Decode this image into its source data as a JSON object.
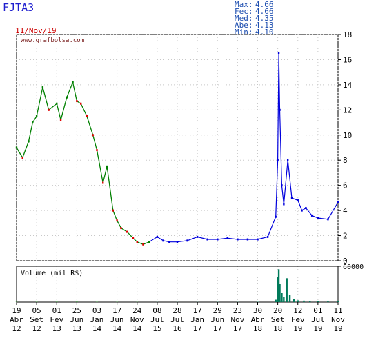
{
  "header": {
    "ticker": "FJTA3",
    "date": "11/Nov/19",
    "stats": [
      {
        "label": "Max:",
        "value": "4.66"
      },
      {
        "label": "Fec:",
        "value": "4.66"
      },
      {
        "label": "Med:",
        "value": "4.35"
      },
      {
        "label": "Abe:",
        "value": "4.13"
      },
      {
        "label": "Min:",
        "value": "4.10"
      }
    ]
  },
  "colors": {
    "up": "#008000",
    "down": "#e00000",
    "recent": "#0000dd",
    "axis": "#000000",
    "grid": "#c8c8c8",
    "title_red": "#cc0000",
    "stats_blue": "#1f4fb0"
  },
  "chart_data": [
    {
      "type": "line",
      "watermark": "www.grafbolsa.com",
      "ylim": [
        0,
        18
      ],
      "y_ticks": [
        0,
        2,
        4,
        6,
        8,
        10,
        12,
        14,
        16,
        18
      ],
      "x_ticks": [
        {
          "day": "19",
          "month": "Abr",
          "year": "12"
        },
        {
          "day": "05",
          "month": "Set",
          "year": "12"
        },
        {
          "day": "01",
          "month": "Fev",
          "year": "13"
        },
        {
          "day": "25",
          "month": "Jun",
          "year": "13"
        },
        {
          "day": "03",
          "month": "Jan",
          "year": "14"
        },
        {
          "day": "17",
          "month": "Jun",
          "year": "14"
        },
        {
          "day": "24",
          "month": "Nov",
          "year": "14"
        },
        {
          "day": "08",
          "month": "Jul",
          "year": "15"
        },
        {
          "day": "28",
          "month": "Jul",
          "year": "16"
        },
        {
          "day": "17",
          "month": "Jan",
          "year": "17"
        },
        {
          "day": "29",
          "month": "Jun",
          "year": "17"
        },
        {
          "day": "23",
          "month": "Nov",
          "year": "17"
        },
        {
          "day": "30",
          "month": "Abr",
          "year": "18"
        },
        {
          "day": "20",
          "month": "Set",
          "year": "18"
        },
        {
          "day": "12",
          "month": "Fev",
          "year": "19"
        },
        {
          "day": "01",
          "month": "Jul",
          "year": "19"
        },
        {
          "day": "11",
          "month": "Nov",
          "year": "19"
        }
      ],
      "price_series": {
        "x": [
          0,
          0.3,
          0.6,
          0.8,
          1,
          1.3,
          1.6,
          2,
          2.2,
          2.5,
          2.8,
          3,
          3.2,
          3.5,
          3.8,
          4,
          4.3,
          4.5,
          4.8,
          5,
          5.2,
          5.5,
          5.8,
          6,
          6.3,
          6.6,
          7,
          7.3,
          7.6,
          8,
          8.5,
          9,
          9.5,
          10,
          10.5,
          11,
          11.5,
          12,
          12.5,
          12.9,
          13,
          13.05,
          13.1,
          13.2,
          13.3,
          13.5,
          13.7,
          14,
          14.2,
          14.4,
          14.7,
          15,
          15.5,
          16
        ],
        "y": [
          9,
          8.2,
          9.5,
          11,
          11.5,
          13.8,
          12,
          12.5,
          11.2,
          13,
          14.2,
          12.7,
          12.5,
          11.5,
          10,
          8.8,
          6.2,
          7.5,
          4,
          3.2,
          2.6,
          2.3,
          1.8,
          1.5,
          1.3,
          1.5,
          1.9,
          1.6,
          1.5,
          1.5,
          1.6,
          1.9,
          1.7,
          1.7,
          1.8,
          1.7,
          1.7,
          1.7,
          1.9,
          3.5,
          8,
          16.5,
          12,
          6,
          4.5,
          8,
          5,
          4.8,
          4,
          4.2,
          3.6,
          3.4,
          3.3,
          4.66
        ],
        "recent_from_x": 6.6
      },
      "volume_panel": {
        "label": "Volume (mil R$)",
        "ylim": [
          0,
          60000
        ],
        "y_ticks": [
          60000
        ],
        "x": [
          0,
          1,
          2,
          3,
          4,
          5,
          6,
          7,
          8,
          9,
          10,
          11,
          12,
          12.9,
          13.0,
          13.05,
          13.1,
          13.2,
          13.3,
          13.45,
          13.6,
          13.8,
          14,
          14.3,
          14.6,
          15,
          15.5,
          16
        ],
        "values": [
          500,
          600,
          700,
          800,
          600,
          500,
          400,
          300,
          300,
          300,
          500,
          400,
          600,
          4000,
          42000,
          55000,
          30000,
          15000,
          9000,
          40000,
          12000,
          5000,
          3000,
          2500,
          2000,
          1500,
          1200,
          1500
        ]
      }
    }
  ]
}
